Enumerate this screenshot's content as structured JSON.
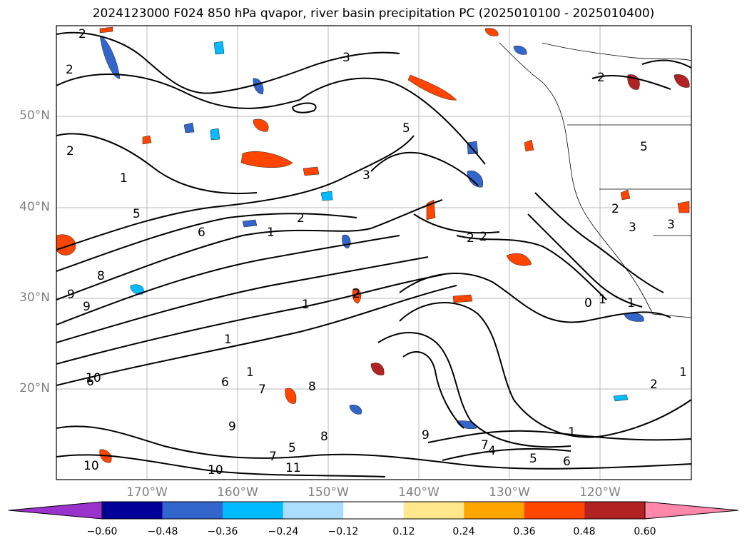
{
  "title": "2024123000 F024 850 hPa qvapor, river basin precipitation PC (2025010100 - 2025010400)",
  "map": {
    "lat_labels": [
      "50°N",
      "40°N",
      "30°N",
      "20°N"
    ],
    "lon_labels": [
      "170°W",
      "160°W",
      "150°W",
      "140°W",
      "130°W",
      "120°W"
    ],
    "contour_labels": [
      "2",
      "2",
      "3",
      "2",
      "2",
      "5",
      "3",
      "1",
      "1",
      "2",
      "2",
      "5",
      "6",
      "8",
      "9",
      "9",
      "1",
      "1",
      "1",
      "6",
      "7",
      "6",
      "8",
      "2",
      "5",
      "1",
      "10",
      "10",
      "9",
      "9",
      "8",
      "7",
      "5",
      "11",
      "10",
      "7",
      "4",
      "5",
      "6",
      "2",
      "1",
      "1",
      "1",
      "2",
      "3",
      "3",
      "2",
      "0"
    ]
  },
  "colorbar": {
    "ticks": [
      "−0.60",
      "−0.48",
      "−0.36",
      "−0.24",
      "−0.12",
      "0.12",
      "0.24",
      "0.36",
      "0.48",
      "0.60"
    ],
    "colors": [
      "#9933cc",
      "#000099",
      "#3366cc",
      "#00bbff",
      "#aaddff",
      "#ffffff",
      "#ffe88c",
      "#ffa500",
      "#ff4500",
      "#b22222",
      "#ff88aa"
    ]
  }
}
